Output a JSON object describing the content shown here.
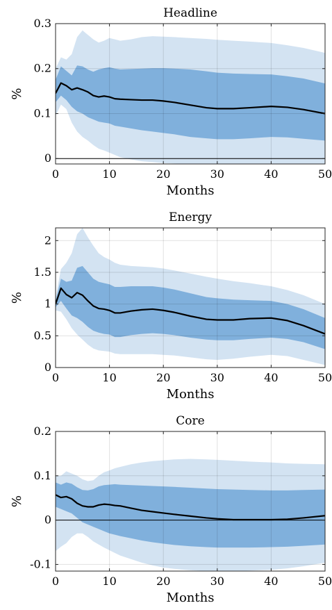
{
  "colors": {
    "outer_band": "#d3e3f2",
    "inner_band": "#80b0dc",
    "median_line": "#000000",
    "zero_line": "#000000",
    "grid": "#d9d9d9",
    "axes": "#262626"
  },
  "chart_data": [
    {
      "type": "area",
      "title": "Headline",
      "xlabel": "Months",
      "ylabel": "%",
      "xlim": [
        0,
        50
      ],
      "ylim": [
        -0.012,
        0.3
      ],
      "xticks": [
        0,
        10,
        20,
        30,
        40,
        50
      ],
      "yticks": [
        0,
        0.1,
        0.2,
        0.3
      ],
      "ytick_labels": [
        "0",
        "0.1",
        "0.2",
        "0.3"
      ],
      "grid": true,
      "x": [
        0,
        1,
        2,
        3,
        4,
        5,
        6,
        7,
        8,
        9,
        10,
        11,
        12,
        14,
        16,
        18,
        20,
        22,
        25,
        28,
        30,
        33,
        36,
        40,
        43,
        46,
        50
      ],
      "median": [
        0.145,
        0.168,
        0.162,
        0.153,
        0.157,
        0.153,
        0.148,
        0.14,
        0.137,
        0.139,
        0.137,
        0.133,
        0.132,
        0.131,
        0.13,
        0.13,
        0.128,
        0.125,
        0.119,
        0.113,
        0.111,
        0.111,
        0.113,
        0.116,
        0.114,
        0.109,
        0.1
      ],
      "inner_upper": [
        0.175,
        0.205,
        0.195,
        0.185,
        0.207,
        0.205,
        0.198,
        0.193,
        0.198,
        0.201,
        0.203,
        0.2,
        0.198,
        0.199,
        0.2,
        0.201,
        0.201,
        0.2,
        0.198,
        0.194,
        0.191,
        0.189,
        0.188,
        0.187,
        0.183,
        0.178,
        0.167
      ],
      "inner_lower": [
        0.125,
        0.14,
        0.13,
        0.115,
        0.105,
        0.1,
        0.092,
        0.087,
        0.082,
        0.08,
        0.078,
        0.073,
        0.071,
        0.067,
        0.063,
        0.06,
        0.057,
        0.054,
        0.048,
        0.045,
        0.043,
        0.043,
        0.045,
        0.048,
        0.047,
        0.044,
        0.04
      ],
      "outer_upper": [
        0.2,
        0.225,
        0.22,
        0.232,
        0.27,
        0.285,
        0.275,
        0.265,
        0.258,
        0.262,
        0.268,
        0.265,
        0.262,
        0.265,
        0.27,
        0.272,
        0.271,
        0.27,
        0.268,
        0.266,
        0.264,
        0.262,
        0.26,
        0.257,
        0.252,
        0.246,
        0.235
      ],
      "outer_lower": [
        0.095,
        0.12,
        0.11,
        0.08,
        0.06,
        0.048,
        0.04,
        0.03,
        0.022,
        0.018,
        0.013,
        0.008,
        0.003,
        -0.002,
        -0.006,
        -0.008,
        -0.01,
        -0.011,
        -0.012,
        -0.012,
        -0.012,
        -0.012,
        -0.012,
        -0.012,
        -0.012,
        -0.012,
        -0.012
      ]
    },
    {
      "type": "area",
      "title": "Energy",
      "xlabel": "Months",
      "ylabel": "%",
      "xlim": [
        0,
        50
      ],
      "ylim": [
        0,
        2.2
      ],
      "xticks": [
        0,
        10,
        20,
        30,
        40,
        50
      ],
      "yticks": [
        0,
        0.5,
        1,
        1.5,
        2
      ],
      "ytick_labels": [
        "0",
        "0.5",
        "1",
        "1.5",
        "2"
      ],
      "grid": true,
      "x": [
        0,
        1,
        2,
        3,
        4,
        5,
        6,
        7,
        8,
        9,
        10,
        11,
        12,
        14,
        16,
        18,
        20,
        22,
        25,
        28,
        30,
        33,
        36,
        40,
        43,
        46,
        50
      ],
      "median": [
        1.0,
        1.25,
        1.15,
        1.1,
        1.18,
        1.14,
        1.05,
        0.97,
        0.93,
        0.92,
        0.9,
        0.86,
        0.86,
        0.89,
        0.91,
        0.92,
        0.9,
        0.87,
        0.81,
        0.76,
        0.75,
        0.75,
        0.77,
        0.78,
        0.74,
        0.66,
        0.53
      ],
      "inner_upper": [
        1.05,
        1.4,
        1.35,
        1.37,
        1.57,
        1.6,
        1.5,
        1.4,
        1.35,
        1.33,
        1.31,
        1.27,
        1.27,
        1.28,
        1.28,
        1.28,
        1.26,
        1.23,
        1.17,
        1.11,
        1.09,
        1.07,
        1.06,
        1.05,
        1.0,
        0.92,
        0.78
      ],
      "inner_lower": [
        0.95,
        1.05,
        0.93,
        0.82,
        0.78,
        0.72,
        0.64,
        0.58,
        0.55,
        0.53,
        0.52,
        0.48,
        0.48,
        0.51,
        0.53,
        0.54,
        0.53,
        0.51,
        0.47,
        0.44,
        0.43,
        0.43,
        0.45,
        0.47,
        0.45,
        0.4,
        0.29
      ],
      "outer_upper": [
        1.1,
        1.55,
        1.65,
        1.8,
        2.1,
        2.2,
        2.05,
        1.92,
        1.8,
        1.74,
        1.7,
        1.65,
        1.62,
        1.6,
        1.59,
        1.58,
        1.56,
        1.53,
        1.48,
        1.43,
        1.4,
        1.36,
        1.33,
        1.28,
        1.22,
        1.14,
        1.0
      ],
      "outer_lower": [
        0.9,
        0.88,
        0.76,
        0.62,
        0.52,
        0.44,
        0.36,
        0.3,
        0.27,
        0.26,
        0.25,
        0.22,
        0.21,
        0.21,
        0.21,
        0.21,
        0.2,
        0.19,
        0.16,
        0.13,
        0.12,
        0.14,
        0.17,
        0.2,
        0.18,
        0.12,
        0.04
      ]
    },
    {
      "type": "area",
      "title": "Core",
      "xlabel": "Months",
      "ylabel": "%",
      "xlim": [
        0,
        50
      ],
      "ylim": [
        -0.115,
        0.2
      ],
      "xticks": [
        0,
        10,
        20,
        30,
        40,
        50
      ],
      "yticks": [
        -0.1,
        0,
        0.1,
        0.2
      ],
      "ytick_labels": [
        "-0.1",
        "0",
        "0.1",
        "0.2"
      ],
      "grid": true,
      "x": [
        0,
        1,
        2,
        3,
        4,
        5,
        6,
        7,
        8,
        9,
        10,
        11,
        12,
        14,
        16,
        18,
        20,
        22,
        25,
        28,
        30,
        33,
        36,
        40,
        43,
        46,
        50
      ],
      "median": [
        0.057,
        0.051,
        0.053,
        0.048,
        0.038,
        0.032,
        0.03,
        0.03,
        0.034,
        0.036,
        0.035,
        0.033,
        0.032,
        0.027,
        0.022,
        0.019,
        0.016,
        0.013,
        0.009,
        0.005,
        0.003,
        0.001,
        0.001,
        0.001,
        0.002,
        0.005,
        0.01
      ],
      "inner_upper": [
        0.085,
        0.08,
        0.085,
        0.082,
        0.074,
        0.068,
        0.067,
        0.07,
        0.076,
        0.079,
        0.08,
        0.081,
        0.08,
        0.079,
        0.078,
        0.077,
        0.076,
        0.075,
        0.073,
        0.071,
        0.07,
        0.069,
        0.068,
        0.067,
        0.067,
        0.068,
        0.069
      ],
      "inner_lower": [
        0.03,
        0.025,
        0.02,
        0.015,
        0.005,
        -0.005,
        -0.01,
        -0.015,
        -0.02,
        -0.025,
        -0.03,
        -0.033,
        -0.036,
        -0.041,
        -0.046,
        -0.05,
        -0.053,
        -0.056,
        -0.059,
        -0.061,
        -0.062,
        -0.062,
        -0.062,
        -0.061,
        -0.06,
        -0.058,
        -0.055
      ],
      "outer_upper": [
        0.1,
        0.1,
        0.11,
        0.105,
        0.1,
        0.092,
        0.088,
        0.09,
        0.1,
        0.108,
        0.112,
        0.117,
        0.12,
        0.126,
        0.13,
        0.133,
        0.135,
        0.137,
        0.138,
        0.137,
        0.136,
        0.134,
        0.132,
        0.13,
        0.128,
        0.127,
        0.126
      ],
      "outer_lower": [
        -0.07,
        -0.06,
        -0.052,
        -0.038,
        -0.03,
        -0.03,
        -0.038,
        -0.048,
        -0.055,
        -0.062,
        -0.068,
        -0.074,
        -0.08,
        -0.088,
        -0.096,
        -0.102,
        -0.107,
        -0.11,
        -0.113,
        -0.115,
        -0.115,
        -0.115,
        -0.114,
        -0.112,
        -0.109,
        -0.104,
        -0.096
      ]
    }
  ]
}
